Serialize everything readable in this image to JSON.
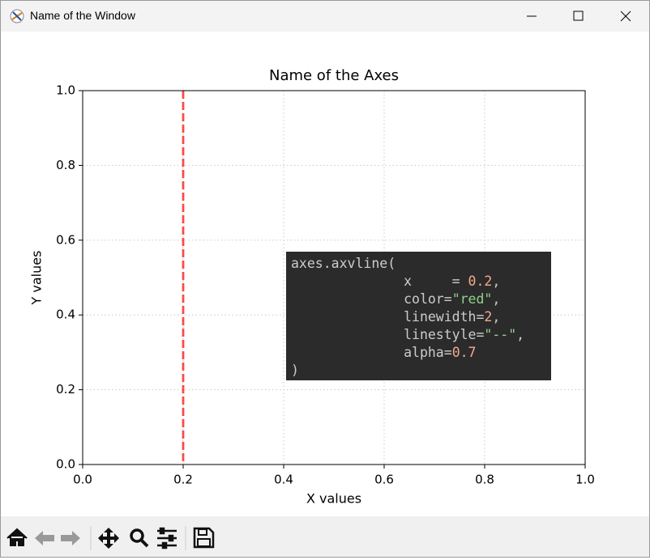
{
  "window": {
    "title": "Name of the Window"
  },
  "chart_data": {
    "type": "vline",
    "title": "Name of the Axes",
    "x_label": "X values",
    "y_label": "Y values",
    "xlim": [
      0,
      1
    ],
    "ylim": [
      0,
      1
    ],
    "xticks": [
      {
        "value": 0,
        "label": "0.0"
      },
      0.2,
      0.4,
      0.6,
      0.8,
      {
        "value": 1,
        "label": "1.0"
      }
    ],
    "yticks": [
      {
        "value": 0,
        "label": "0.0"
      },
      0.2,
      0.4,
      0.6,
      0.8,
      {
        "value": 1,
        "label": "1.0"
      }
    ],
    "grid": true,
    "vlines": [
      {
        "x": 0.2,
        "color": "red",
        "linewidth": 2,
        "linestyle": "--",
        "alpha": 0.7
      }
    ],
    "annotation": {
      "lines": [
        [
          {
            "text": "axes.axvline(",
            "color": "#cccccc"
          }
        ],
        [
          {
            "text": "              x     = ",
            "color": "#cccccc"
          },
          {
            "text": "0.2",
            "color": "#f5a98c"
          },
          {
            "text": ",",
            "color": "#cccccc"
          }
        ],
        [
          {
            "text": "              color=",
            "color": "#cccccc"
          },
          {
            "text": "\"red\"",
            "color": "#8fd28f"
          },
          {
            "text": ",",
            "color": "#cccccc"
          }
        ],
        [
          {
            "text": "              linewidth=",
            "color": "#cccccc"
          },
          {
            "text": "2",
            "color": "#f5a98c"
          },
          {
            "text": ",",
            "color": "#cccccc"
          }
        ],
        [
          {
            "text": "              linestyle=",
            "color": "#cccccc"
          },
          {
            "text": "\"--\"",
            "color": "#8fd28f"
          },
          {
            "text": ",",
            "color": "#cccccc"
          }
        ],
        [
          {
            "text": "              alpha=",
            "color": "#cccccc"
          },
          {
            "text": "0.7",
            "color": "#f5a98c"
          }
        ],
        [
          {
            "text": ")",
            "color": "#cccccc"
          }
        ]
      ]
    }
  }
}
